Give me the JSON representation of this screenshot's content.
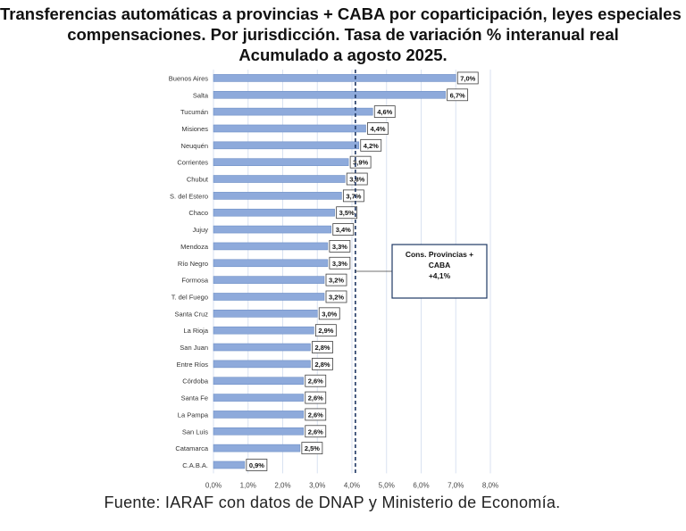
{
  "title_lines": [
    "Transferencias automáticas a provincias + CABA por coparticipación, leyes especiales y",
    "compensaciones. Por jurisdicción. Tasa de variación % interanual real",
    "Acumulado a agosto 2025."
  ],
  "source": "Fuente: IARAF con datos de DNAP y Ministerio de Economía.",
  "chart_data": {
    "type": "bar",
    "orientation": "horizontal",
    "categories": [
      "Buenos Aires",
      "Salta",
      "Tucumán",
      "Misiones",
      "Neuquén",
      "Corrientes",
      "Chubut",
      "S. del Estero",
      "Chaco",
      "Jujuy",
      "Mendoza",
      "Río Negro",
      "Formosa",
      "T. del Fuego",
      "Santa Cruz",
      "La Rioja",
      "San Juan",
      "Entre Ríos",
      "Córdoba",
      "Santa Fe",
      "La Pampa",
      "San Luis",
      "Catamarca",
      "C.A.B.A."
    ],
    "values": [
      7.0,
      6.7,
      4.6,
      4.4,
      4.2,
      3.9,
      3.8,
      3.7,
      3.5,
      3.4,
      3.3,
      3.3,
      3.2,
      3.2,
      3.0,
      2.9,
      2.8,
      2.8,
      2.6,
      2.6,
      2.6,
      2.6,
      2.5,
      0.9
    ],
    "value_labels": [
      "7,0%",
      "6,7%",
      "4,6%",
      "4,4%",
      "4,2%",
      "3,9%",
      "3,8%",
      "3,7%",
      "3,5%",
      "3,4%",
      "3,3%",
      "3,3%",
      "3,2%",
      "3,2%",
      "3,0%",
      "2,9%",
      "2,8%",
      "2,8%",
      "2,6%",
      "2,6%",
      "2,6%",
      "2,6%",
      "2,5%",
      "0,9%"
    ],
    "xlim": [
      0,
      8
    ],
    "xticks": [
      0,
      1,
      2,
      3,
      4,
      5,
      6,
      7,
      8
    ],
    "xtick_labels": [
      "0,0%",
      "1,0%",
      "2,0%",
      "3,0%",
      "4,0%",
      "5,0%",
      "6,0%",
      "7,0%",
      "8,0%"
    ],
    "grid": "vertical",
    "bar_color": "#8eaadb",
    "bar_edge_color": "#6e8fc6",
    "reference_line": {
      "value": 4.1,
      "style": "dashed",
      "color": "#1f3864",
      "label_lines": [
        "Cons. Provincias +",
        "CABA",
        "+4,1%"
      ]
    }
  }
}
